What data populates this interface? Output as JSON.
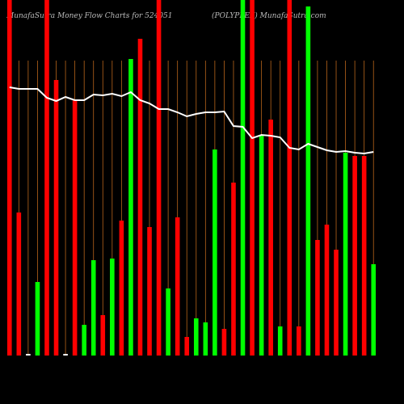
{
  "chart_data": {
    "type": "bar",
    "title": "MunafaSutra  Money Flow  Charts for 524051",
    "subtitle": "(POLYPLEX) MunafaSutra.com",
    "categories": [
      null,
      null,
      null,
      null,
      null,
      null,
      null,
      null,
      null,
      null,
      null,
      null,
      null,
      null,
      null,
      null,
      null,
      null,
      null,
      null,
      null,
      null,
      null,
      null,
      null,
      null,
      null,
      null,
      null,
      null,
      null,
      null,
      null,
      null,
      null,
      null,
      null,
      null,
      null,
      null
    ],
    "values": [
      440,
      177,
      2,
      91,
      440,
      341,
      2,
      316,
      38,
      118,
      50,
      120,
      167,
      367,
      392,
      159,
      440,
      83,
      171,
      23,
      46,
      41,
      255,
      33,
      214,
      440,
      440,
      272,
      292,
      36,
      440,
      36,
      432,
      143,
      162,
      131,
      251,
      247,
      247,
      113
    ],
    "colors": [
      "#ff0000",
      "#ff0000",
      "#ffffff",
      "#00ff00",
      "#ff0000",
      "#ff0000",
      "#ffffff",
      "#ff0000",
      "#00ff00",
      "#00ff00",
      "#ff0000",
      "#00ff00",
      "#ff0000",
      "#00ff00",
      "#ff0000",
      "#ff0000",
      "#ff0000",
      "#00ff00",
      "#ff0000",
      "#ff0000",
      "#00ff00",
      "#00ff00",
      "#00ff00",
      "#ff0000",
      "#ff0000",
      "#00ff00",
      "#ff0000",
      "#00ff00",
      "#ff0000",
      "#00ff00",
      "#ff0000",
      "#ff0000",
      "#00ff00",
      "#ff0000",
      "#ff0000",
      "#ff0000",
      "#00ff00",
      "#ff0000",
      "#ff0000",
      "#00ff00"
    ],
    "line": {
      "color": "#ffffff",
      "values": [
        332,
        330,
        330,
        330,
        319,
        315,
        320,
        316,
        316,
        323,
        322,
        324,
        321,
        326,
        316,
        312,
        305,
        305,
        301,
        296,
        299,
        301,
        301,
        302,
        284,
        283,
        269,
        273,
        272,
        270,
        257,
        255,
        262,
        258,
        254,
        252,
        253,
        251,
        250,
        252
      ]
    },
    "ylim": [
      0,
      440
    ]
  }
}
